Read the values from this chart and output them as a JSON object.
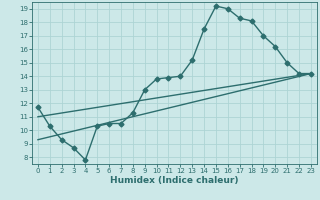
{
  "xlabel": "Humidex (Indice chaleur)",
  "ylabel": "",
  "bg_color": "#cce8e8",
  "line_color": "#2d6e6e",
  "grid_color": "#add4d4",
  "xlim": [
    -0.5,
    23.5
  ],
  "ylim": [
    7.5,
    19.5
  ],
  "xticks": [
    0,
    1,
    2,
    3,
    4,
    5,
    6,
    7,
    8,
    9,
    10,
    11,
    12,
    13,
    14,
    15,
    16,
    17,
    18,
    19,
    20,
    21,
    22,
    23
  ],
  "yticks": [
    8,
    9,
    10,
    11,
    12,
    13,
    14,
    15,
    16,
    17,
    18,
    19
  ],
  "line1_x": [
    0,
    1,
    2,
    3,
    4,
    5,
    6,
    7,
    8,
    9,
    10,
    11,
    12,
    13,
    14,
    15,
    16,
    17,
    18,
    19,
    20,
    21,
    22,
    23
  ],
  "line1_y": [
    11.7,
    10.3,
    9.3,
    8.7,
    7.8,
    10.3,
    10.5,
    10.5,
    11.3,
    13.0,
    13.8,
    13.9,
    14.0,
    15.2,
    17.5,
    19.2,
    19.0,
    18.3,
    18.1,
    17.0,
    16.2,
    15.0,
    14.2,
    14.2
  ],
  "line2_x": [
    0,
    23
  ],
  "line2_y": [
    9.3,
    14.2
  ],
  "line3_x": [
    0,
    23
  ],
  "line3_y": [
    11.0,
    14.2
  ],
  "marker": "D",
  "marker_size": 2.5,
  "linewidth": 1.0,
  "tick_fontsize": 5.0,
  "xlabel_fontsize": 6.5
}
